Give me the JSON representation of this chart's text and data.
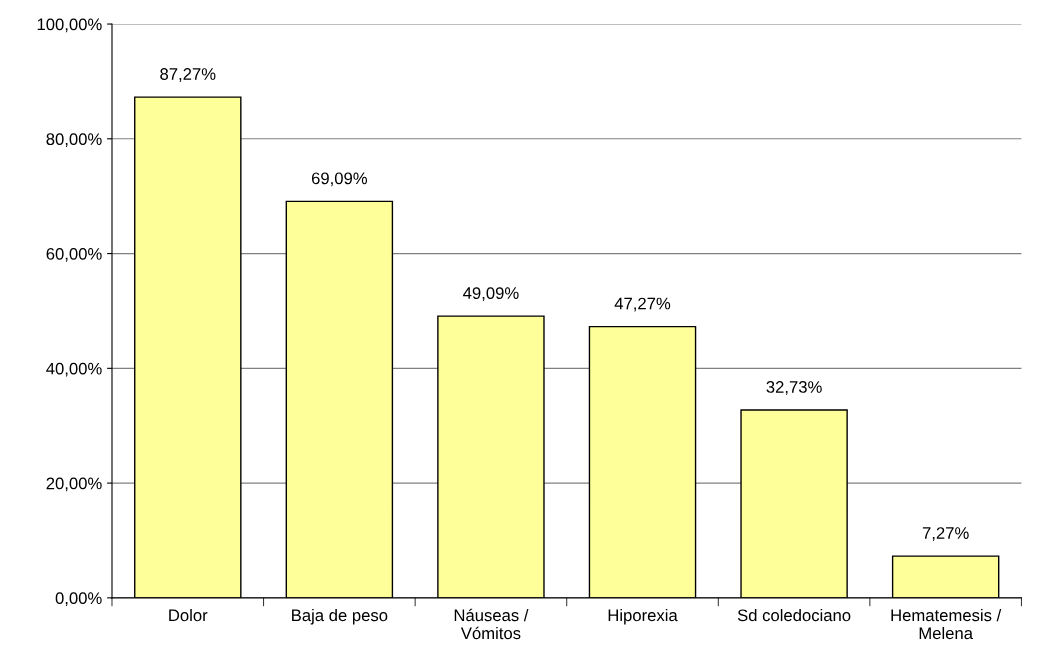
{
  "chart_data": {
    "type": "bar",
    "categories": [
      "Dolor",
      "Baja de peso",
      "Náuseas /\nVómitos",
      "Hiporexia",
      "Sd coledociano",
      "Hematemesis /\nMelena"
    ],
    "values": [
      87.27,
      69.09,
      49.09,
      47.27,
      32.73,
      7.27
    ],
    "value_labels": [
      "87,27%",
      "69,09%",
      "49,09%",
      "47,27%",
      "32,73%",
      "7,27%"
    ],
    "color": "#ffff99",
    "ylim": [
      0,
      100
    ],
    "yticks": [
      {
        "value": 0,
        "label": "0,00%"
      },
      {
        "value": 20,
        "label": "20,00%"
      },
      {
        "value": 40,
        "label": "40,00%"
      },
      {
        "value": 60,
        "label": "60,00%"
      },
      {
        "value": 80,
        "label": "80,00%"
      },
      {
        "value": 100,
        "label": "100,00%"
      }
    ],
    "grid": "y"
  }
}
